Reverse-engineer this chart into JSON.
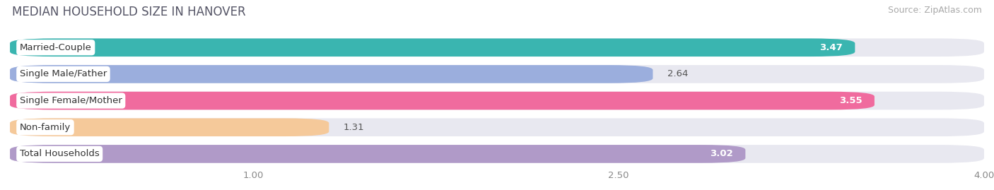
{
  "title": "MEDIAN HOUSEHOLD SIZE IN HANOVER",
  "source": "Source: ZipAtlas.com",
  "categories": [
    "Married-Couple",
    "Single Male/Father",
    "Single Female/Mother",
    "Non-family",
    "Total Households"
  ],
  "values": [
    3.47,
    2.64,
    3.55,
    1.31,
    3.02
  ],
  "bar_colors": [
    "#3ab5b0",
    "#9baedd",
    "#f06b9e",
    "#f5c99a",
    "#b09ac8"
  ],
  "xmin": 0.0,
  "xmax": 4.0,
  "xticks": [
    1.0,
    2.5,
    4.0
  ],
  "background_color": "#ffffff",
  "bar_bg_color": "#e8e8f0",
  "title_color": "#555566",
  "source_color": "#aaaaaa",
  "title_fontsize": 12,
  "label_fontsize": 9.5,
  "value_fontsize": 9.5,
  "source_fontsize": 9
}
